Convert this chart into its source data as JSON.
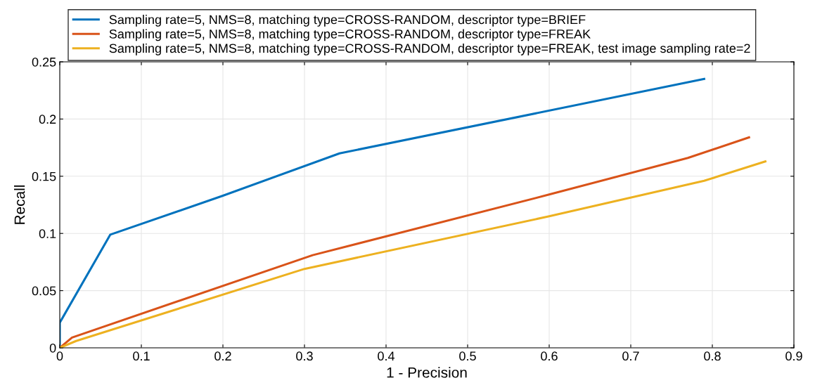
{
  "chart_data": {
    "type": "line",
    "xlabel": "1 - Precision",
    "ylabel": "Recall",
    "xlim": [
      0,
      0.9
    ],
    "ylim": [
      0,
      0.25
    ],
    "xticks": [
      0,
      0.1,
      0.2,
      0.3,
      0.4,
      0.5,
      0.6,
      0.7,
      0.8,
      0.9
    ],
    "yticks": [
      0,
      0.05,
      0.1,
      0.15,
      0.2,
      0.25
    ],
    "grid": true,
    "legend": "top",
    "marker": "none",
    "line_style": "solid",
    "series": [
      {
        "name": "Sampling rate=5, NMS=8, matching type=CROSS-RANDOM, descriptor type=BRIEF",
        "color": "#0072bd",
        "x": [
          0,
          0,
          0.062,
          0.2,
          0.343,
          0.79
        ],
        "values": [
          0,
          0.022,
          0.099,
          0.133,
          0.17,
          0.235
        ]
      },
      {
        "name": "Sampling rate=5, NMS=8, matching type=CROSS-RANDOM, descriptor type=FREAK",
        "color": "#d95319",
        "x": [
          0,
          0.015,
          0.31,
          0.6,
          0.77,
          0.845
        ],
        "values": [
          0,
          0.009,
          0.081,
          0.134,
          0.166,
          0.184
        ]
      },
      {
        "name": "Sampling rate=5, NMS=8, matching type=CROSS-RANDOM, descriptor type=FREAK, test image sampling rate=2",
        "color": "#edb120",
        "x": [
          0,
          0.02,
          0.3,
          0.6,
          0.79,
          0.865
        ],
        "values": [
          0,
          0.006,
          0.069,
          0.115,
          0.146,
          0.163
        ]
      }
    ]
  }
}
